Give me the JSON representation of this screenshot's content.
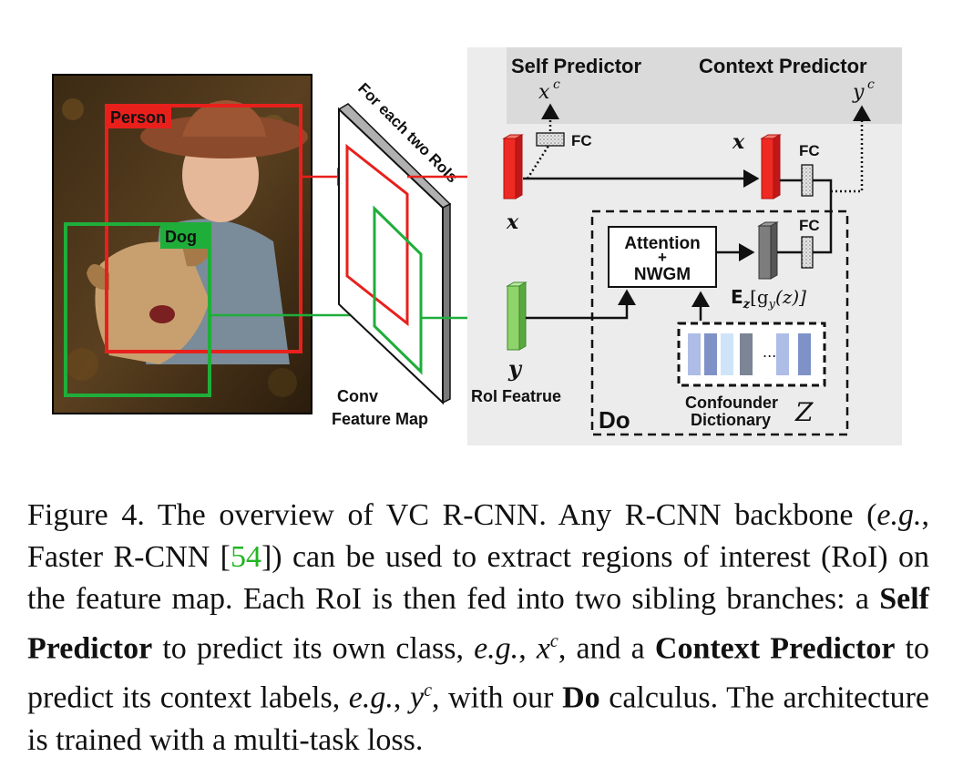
{
  "labels": {
    "person": "Person",
    "dog": "Dog",
    "for_each": "For each two RoIs",
    "conv_line1": "Conv",
    "conv_line2": "Feature Map",
    "roi_feature": "RoI Featrue",
    "self_predictor": "Self Predictor",
    "context_predictor": "Context Predictor",
    "fc": "FC",
    "attention": "Attention",
    "plus": "+",
    "nwgm": "NWGM",
    "do": "Do",
    "confounder_line1": "Confounder",
    "confounder_line2": "Dictionary",
    "ellipsis": "...",
    "x": "x",
    "y": "y",
    "xc": "x",
    "yc": "y",
    "sup_c": "c",
    "z_dict": "Z",
    "expectation": "E",
    "expectation_rest": "[g",
    "expectation_z": "z",
    "expectation_sub_y": "y",
    "expectation_arg": "(z)]"
  },
  "colors": {
    "red": "#e8201c",
    "green": "#1fae3a",
    "gray_panel": "#ececec",
    "gray_header": "#dadada",
    "dict_colors": [
      "#aebde6",
      "#7f92c7",
      "#cfe4f8",
      "#7b8596",
      "#aebde6",
      "#7f92c7"
    ]
  },
  "caption": {
    "fig": "Figure 4.",
    "t1": " The overview of VC R-CNN. Any R-CNN backbone (",
    "eg1": "e.g.",
    "t2": ", Faster R-CNN [",
    "ref": "54",
    "t3": "]) can be used to extract regions of interest (RoI) on the feature map.  Each RoI is then fed into two sibling branches: a ",
    "self_predictor": "Self Predictor",
    "t4": " to predict its own class, ",
    "eg2": "e.g.",
    "t5": ", ",
    "xc": "x",
    "sup1": "c",
    "t6": ", and a ",
    "context_predictor": "Context Predictor",
    "t7": " to predict its context labels, ",
    "eg3": "e.g.",
    "t8": ", ",
    "yc": "y",
    "sup2": "c",
    "t9": ", with our ",
    "do": "Do",
    "t10": " calculus. The architecture is trained with a multi-task loss."
  }
}
